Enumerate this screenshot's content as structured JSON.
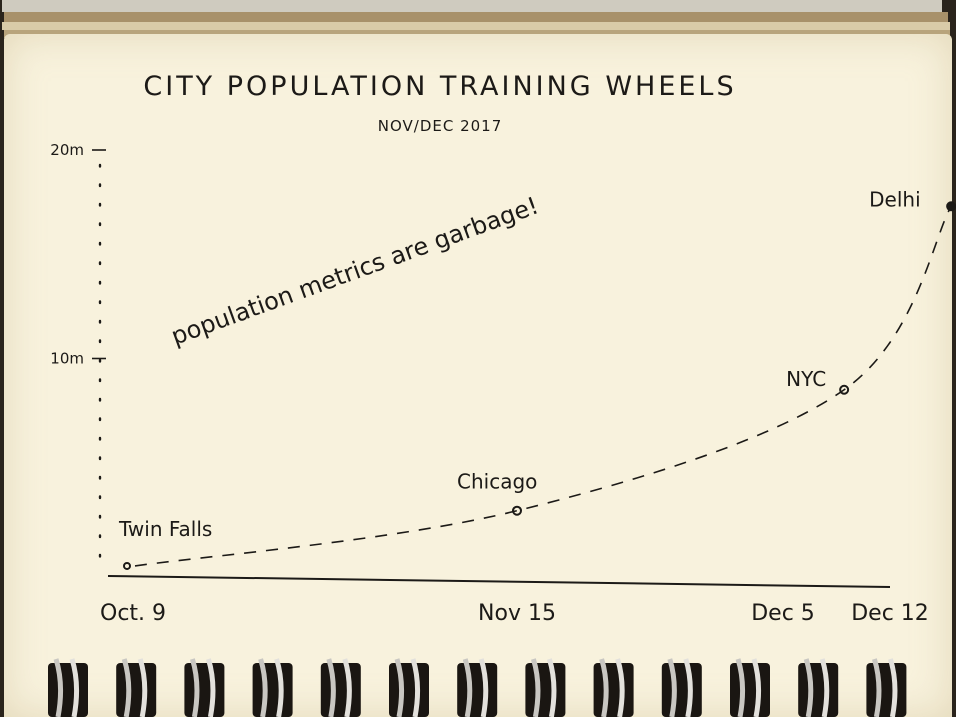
{
  "chart_data": {
    "type": "scatter",
    "title": "CITY POPULATION TRAINING WHEELS",
    "subtitle": "NOV/DEC 2017",
    "xlabel": "",
    "ylabel": "",
    "x_ticks": [
      "Oct. 9",
      "Nov 15",
      "Dec 5",
      "Dec 12"
    ],
    "x_tick_days": [
      0,
      37,
      57,
      64
    ],
    "y_ticks": [
      {
        "label": "20m",
        "value": 20
      },
      {
        "label": "10m",
        "value": 10
      }
    ],
    "ylim": [
      0,
      20
    ],
    "grid": false,
    "legend": "none",
    "points": [
      {
        "label": "Twin Falls",
        "day": 0,
        "value": 0.05
      },
      {
        "label": "Chicago",
        "day": 37,
        "value": 2.7
      },
      {
        "label": "NYC",
        "day": 61,
        "value": 8.5
      },
      {
        "label": "Delhi",
        "day": 68,
        "value": 17.3,
        "note": "?"
      }
    ],
    "annotation": "population metrics are garbage!",
    "connector": "dashed curve",
    "colors": {
      "ink": "#1c1a17",
      "paper": "#f8f2dd"
    }
  }
}
